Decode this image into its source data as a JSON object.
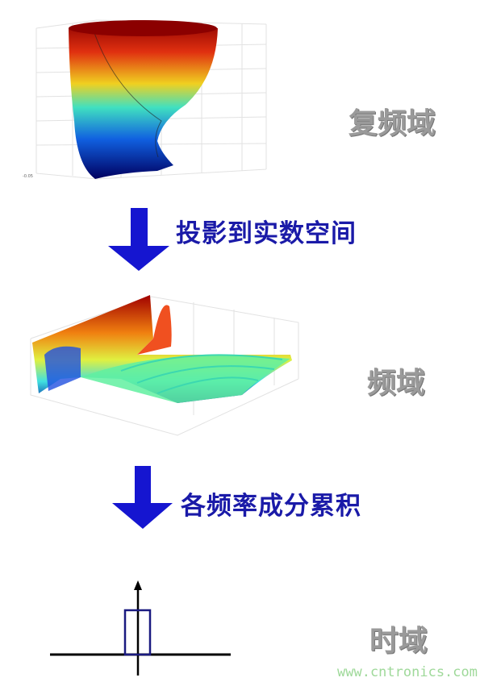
{
  "labels": {
    "complex_domain": "复频域",
    "step1": "投影到实数空间",
    "frequency_domain": "频域",
    "step2": "各频率成分累积",
    "time_domain": "时域"
  },
  "watermark": "www.cntronics.com",
  "colors": {
    "arrow": "#1515d0",
    "text": "#1a1aa8",
    "pulse": "#1a1a80",
    "domain_label": "#9a9a9a"
  }
}
